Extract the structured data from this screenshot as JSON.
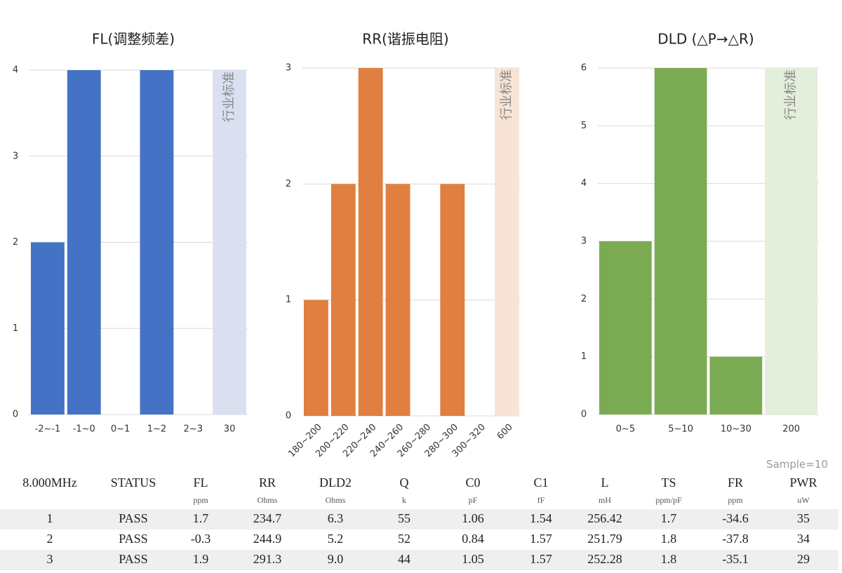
{
  "chart_data": [
    {
      "type": "bar",
      "title": "FL(调整频差)",
      "categories": [
        "-2~-1",
        "-1~0",
        "0~1",
        "1~2",
        "2~3",
        "30"
      ],
      "values": [
        2,
        4,
        0,
        4,
        0,
        null
      ],
      "color": "#4472c4",
      "ylim": [
        0,
        4
      ],
      "yticks": [
        0,
        1,
        2,
        3,
        4
      ],
      "grid": true,
      "standard": {
        "label": "行业标准",
        "value": 4,
        "color": "#dae0f0"
      }
    },
    {
      "type": "bar",
      "title": "RR(谐振电阻)",
      "categories": [
        "180~200",
        "200~220",
        "220~240",
        "240~260",
        "260~280",
        "280~300",
        "300~320",
        "600"
      ],
      "values": [
        1,
        2,
        3,
        2,
        0,
        2,
        0,
        null
      ],
      "color": "#e07f3f",
      "ylim": [
        0,
        3
      ],
      "yticks": [
        0,
        1,
        2,
        3
      ],
      "grid": true,
      "standard": {
        "label": "行业标准",
        "value": 3,
        "color": "#f8e4d6"
      }
    },
    {
      "type": "bar",
      "title": "DLD (△P→△R)",
      "categories": [
        "0~5",
        "5~10",
        "10~30",
        "200"
      ],
      "values": [
        3,
        6,
        1,
        null
      ],
      "color": "#7aab52",
      "ylim": [
        0,
        6
      ],
      "yticks": [
        0,
        1,
        2,
        3,
        4,
        5,
        6
      ],
      "grid": true,
      "standard": {
        "label": "行业标准",
        "value": 6,
        "color": "#e3eedb"
      }
    }
  ],
  "table": {
    "sample": "Sample=10",
    "columns": [
      "8.000MHz",
      "STATUS",
      "FL",
      "RR",
      "DLD2",
      "Q",
      "C0",
      "C1",
      "L",
      "TS",
      "FR",
      "PWR"
    ],
    "units": [
      null,
      null,
      "ppm",
      "Ohms",
      "Ohms",
      "k",
      "pF",
      "fF",
      "mH",
      "ppm/pF",
      "ppm",
      "uW"
    ],
    "rows": [
      [
        "1",
        "PASS",
        "1.7",
        "234.7",
        "6.3",
        "55",
        "1.06",
        "1.54",
        "256.42",
        "1.7",
        "-34.6",
        "35"
      ],
      [
        "2",
        "PASS",
        "-0.3",
        "244.9",
        "5.2",
        "52",
        "0.84",
        "1.57",
        "251.79",
        "1.8",
        "-37.8",
        "34"
      ],
      [
        "3",
        "PASS",
        "1.9",
        "291.3",
        "9.0",
        "44",
        "1.05",
        "1.57",
        "252.28",
        "1.8",
        "-35.1",
        "29"
      ]
    ]
  }
}
